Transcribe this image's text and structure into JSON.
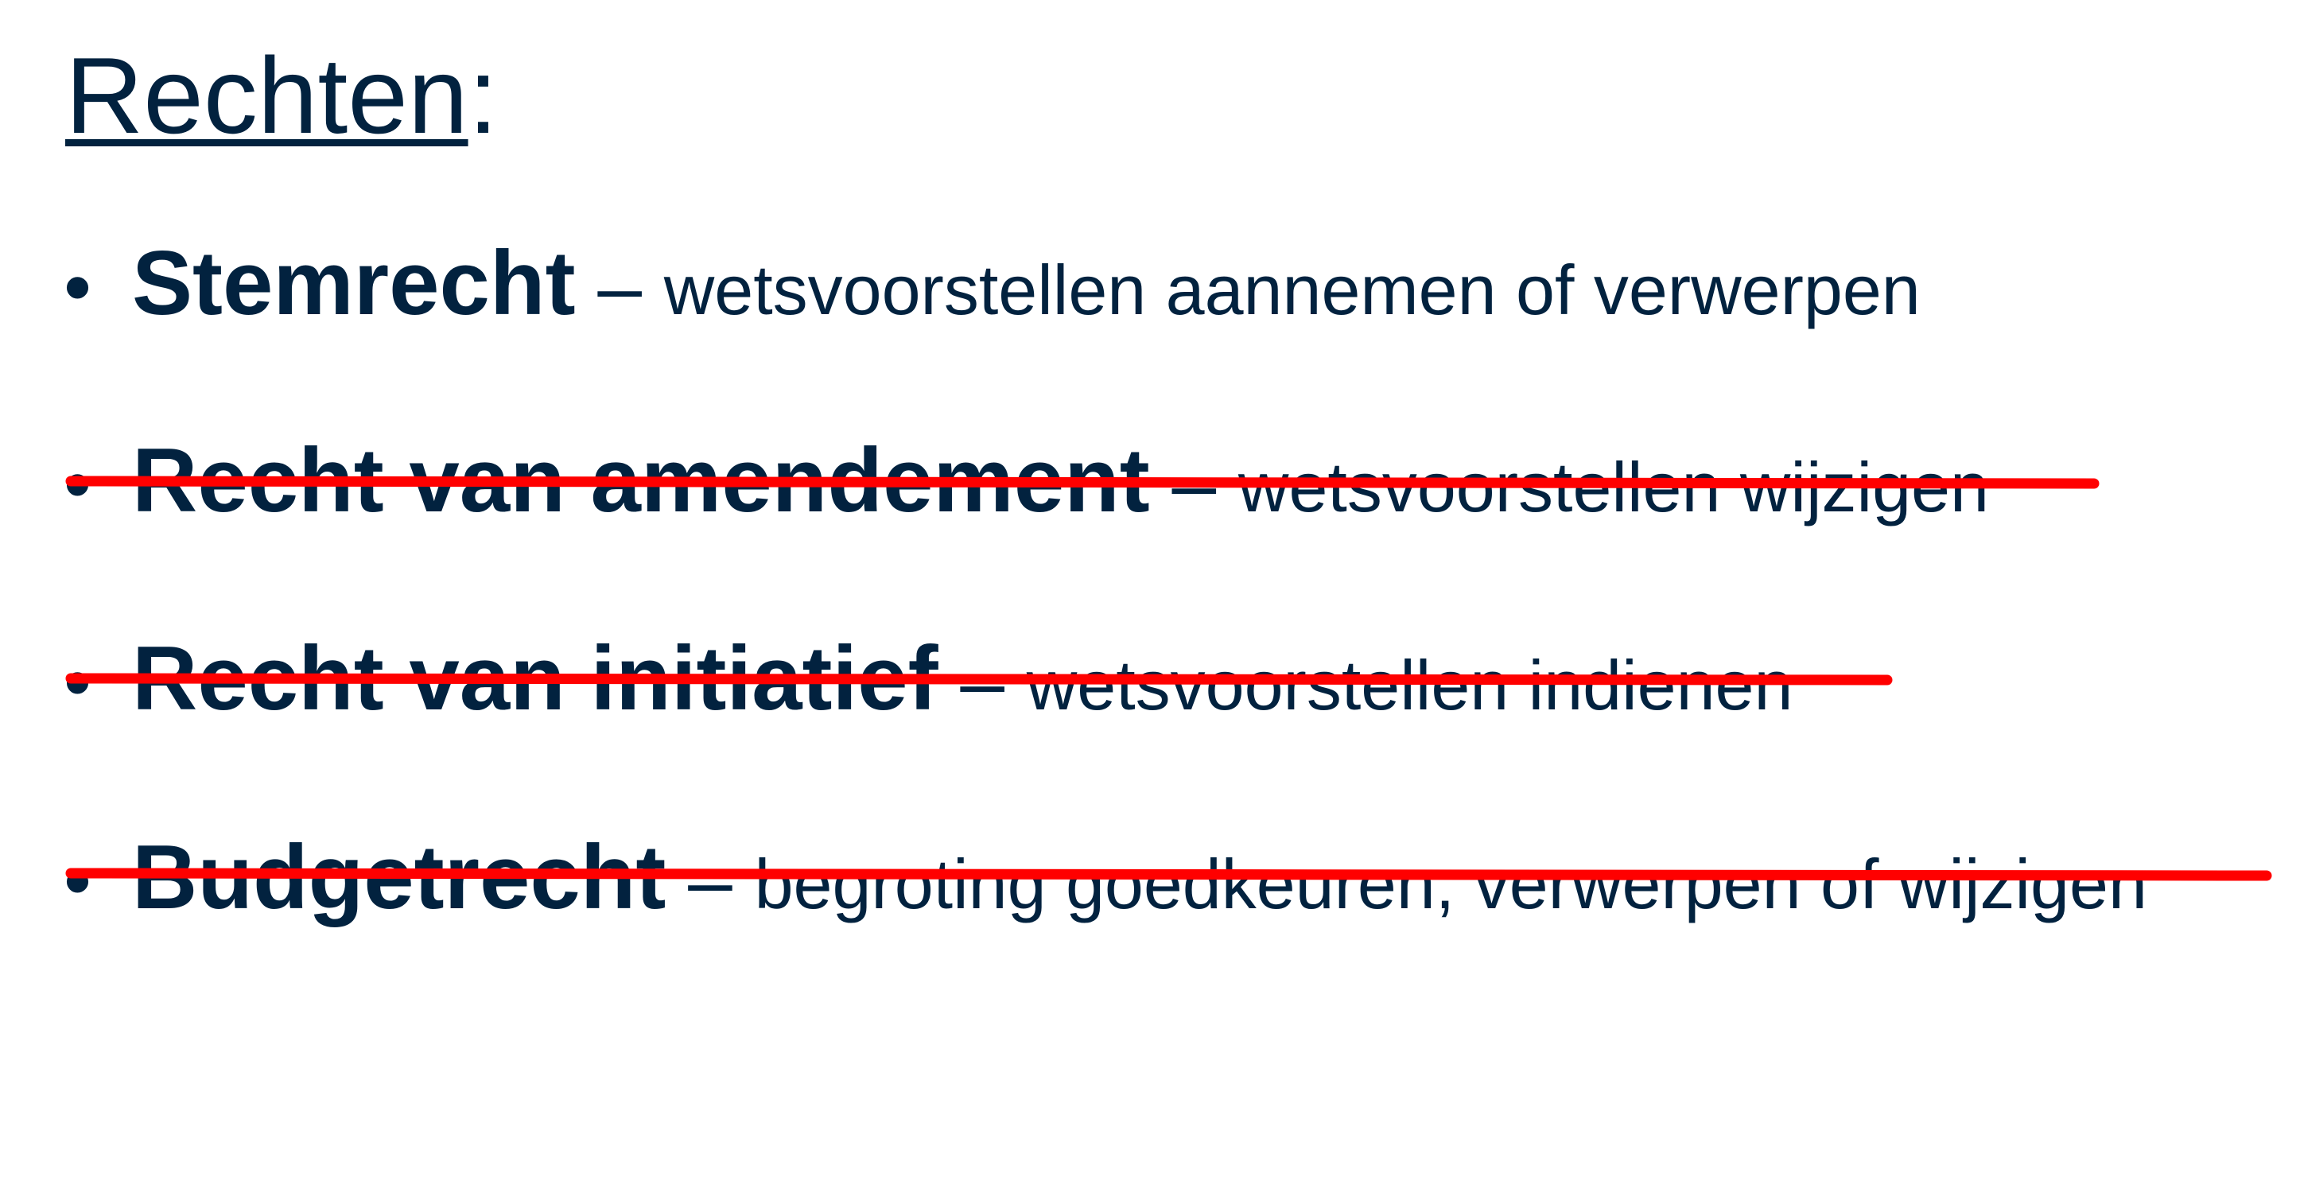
{
  "title": {
    "text": "Rechten",
    "suffix": ":"
  },
  "items": [
    {
      "term": "Stemrecht",
      "separator": " – ",
      "description": "wetsvoorstellen aannemen of verwerpen",
      "struck": false
    },
    {
      "term": "Recht van amendement",
      "separator": " – ",
      "description": "wetsvoorstellen wijzigen",
      "struck": true
    },
    {
      "term": "Recht van initiatief",
      "separator": " – ",
      "description": "wetsvoorstellen indienen",
      "struck": true
    },
    {
      "term": "Budgetrecht",
      "separator": " – ",
      "description": "begroting goedkeuren, verwerpen of wijzigen",
      "struck": true
    }
  ],
  "bullet": "•",
  "colors": {
    "text": "#02223f",
    "strike": "#ff0000",
    "background": "#ffffff"
  }
}
